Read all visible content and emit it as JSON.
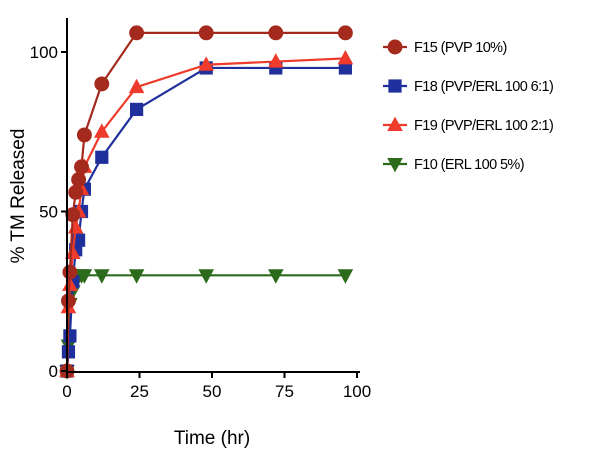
{
  "chart_data": {
    "type": "line",
    "title": "",
    "xlabel": "Time (hr)",
    "ylabel": "% TM Released",
    "xlim": [
      0,
      100
    ],
    "ylim": [
      0,
      105
    ],
    "x_ticks": [
      0,
      25,
      50,
      75,
      100
    ],
    "y_ticks": [
      0,
      50,
      100
    ],
    "grid": false,
    "legend_position": "right",
    "series": [
      {
        "name": "F15 (PVP 10%)",
        "color": "#a52a1e",
        "marker": "circle",
        "x": [
          0,
          0.5,
          1,
          2,
          3,
          4,
          5,
          6,
          12,
          24,
          48,
          72,
          96
        ],
        "y": [
          0,
          22,
          31,
          49,
          56,
          60,
          64,
          74,
          90,
          106,
          106,
          106,
          106
        ]
      },
      {
        "name": "F18 (PVP/ERL 100 6:1)",
        "color": "#1f2f9b",
        "marker": "square",
        "x": [
          0,
          0.5,
          1,
          2,
          3,
          4,
          5,
          6,
          12,
          24,
          48,
          72,
          96
        ],
        "y": [
          0,
          6,
          11,
          28,
          38,
          41,
          50,
          57,
          67,
          82,
          95,
          95,
          95
        ]
      },
      {
        "name": "F19 (PVP/ERL 100 2:1)",
        "color": "#ee3b2b",
        "marker": "triangle-up",
        "x": [
          0,
          0.5,
          1,
          2,
          3,
          4,
          5,
          6,
          12,
          24,
          48,
          72,
          96
        ],
        "y": [
          0,
          20,
          27,
          37,
          45,
          50,
          57,
          64,
          75,
          89,
          96,
          97,
          98
        ]
      },
      {
        "name": "F10 (ERL 100 5%)",
        "color": "#2c6b1c",
        "marker": "triangle-down",
        "x": [
          0,
          0.5,
          1,
          2,
          3,
          4,
          5,
          6,
          12,
          24,
          48,
          72,
          96
        ],
        "y": [
          0,
          8,
          21,
          25,
          28,
          30,
          30,
          30,
          30,
          30,
          30,
          30,
          30
        ]
      }
    ]
  }
}
